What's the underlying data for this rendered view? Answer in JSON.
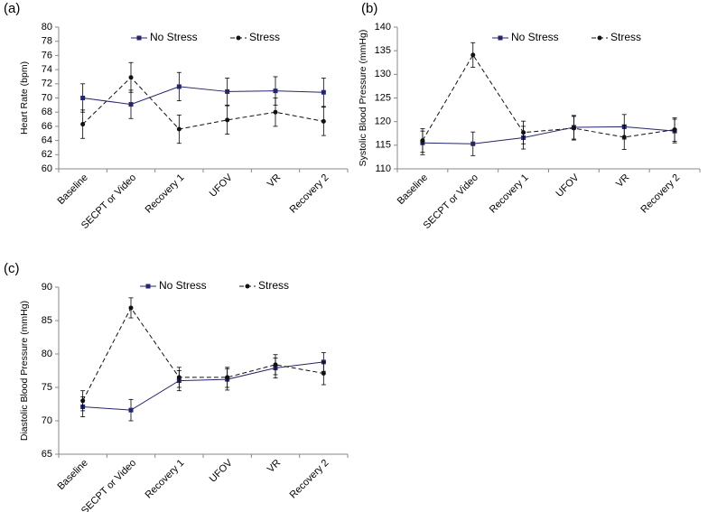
{
  "chart_data": [
    {
      "type": "line",
      "label": "(a)",
      "y_label": "Heart Rate (bpm)",
      "categories": [
        "Baseline",
        "SECPT or Video",
        "Recovery 1",
        "UFOV",
        "VR",
        "Recovery 2"
      ],
      "ylim": [
        60,
        80
      ],
      "yticks": [
        60,
        62,
        64,
        66,
        68,
        70,
        72,
        74,
        76,
        78,
        80
      ],
      "series": [
        {
          "name": "No Stress",
          "color": "#25256b",
          "dashed": false,
          "marker": "square",
          "values": [
            70.0,
            69.1,
            71.6,
            70.9,
            71.0,
            70.8
          ],
          "errors": [
            2.0,
            2.0,
            2.0,
            1.9,
            2.0,
            2.0
          ]
        },
        {
          "name": "Stress",
          "color": "#111111",
          "dashed": true,
          "marker": "circle",
          "values": [
            66.3,
            72.9,
            65.6,
            66.9,
            68.0,
            66.7
          ],
          "errors": [
            2.0,
            2.1,
            2.0,
            2.0,
            2.0,
            2.0
          ]
        }
      ]
    },
    {
      "type": "line",
      "label": "(b)",
      "y_label": "Systolic Blood Pressure (mmHg)",
      "categories": [
        "Baseline",
        "SECPT or Video",
        "Recovery 1",
        "UFOV",
        "VR",
        "Recovery 2"
      ],
      "ylim": [
        110,
        140
      ],
      "yticks": [
        110,
        115,
        120,
        125,
        130,
        135,
        140
      ],
      "series": [
        {
          "name": "No Stress",
          "color": "#25256b",
          "dashed": false,
          "marker": "square",
          "values": [
            115.5,
            115.3,
            116.6,
            118.8,
            118.9,
            118.0
          ],
          "errors": [
            2.5,
            2.5,
            2.4,
            2.5,
            2.6,
            2.5
          ]
        },
        {
          "name": "Stress",
          "color": "#111111",
          "dashed": true,
          "marker": "circle",
          "values": [
            116.0,
            134.1,
            117.7,
            118.6,
            116.7,
            118.3
          ],
          "errors": [
            2.5,
            2.6,
            2.4,
            2.5,
            2.6,
            2.5
          ]
        }
      ]
    },
    {
      "type": "line",
      "label": "(c)",
      "y_label": "Diastolic Blood Pressure (mmHg)",
      "categories": [
        "Baseline",
        "SECPT or Video",
        "Recovery 1",
        "UFOV",
        "VR",
        "Recovery 2"
      ],
      "ylim": [
        65,
        90
      ],
      "yticks": [
        65,
        70,
        75,
        80,
        85,
        90
      ],
      "series": [
        {
          "name": "No Stress",
          "color": "#25256b",
          "dashed": false,
          "marker": "square",
          "values": [
            72.1,
            71.6,
            76.0,
            76.2,
            77.9,
            78.8
          ],
          "errors": [
            1.5,
            1.6,
            1.5,
            1.6,
            1.5,
            1.4
          ]
        },
        {
          "name": "Stress",
          "color": "#111111",
          "dashed": true,
          "marker": "circle",
          "values": [
            73.0,
            86.9,
            76.5,
            76.5,
            78.4,
            77.1
          ],
          "errors": [
            1.5,
            1.5,
            1.5,
            1.5,
            1.5,
            1.7
          ]
        }
      ]
    }
  ]
}
